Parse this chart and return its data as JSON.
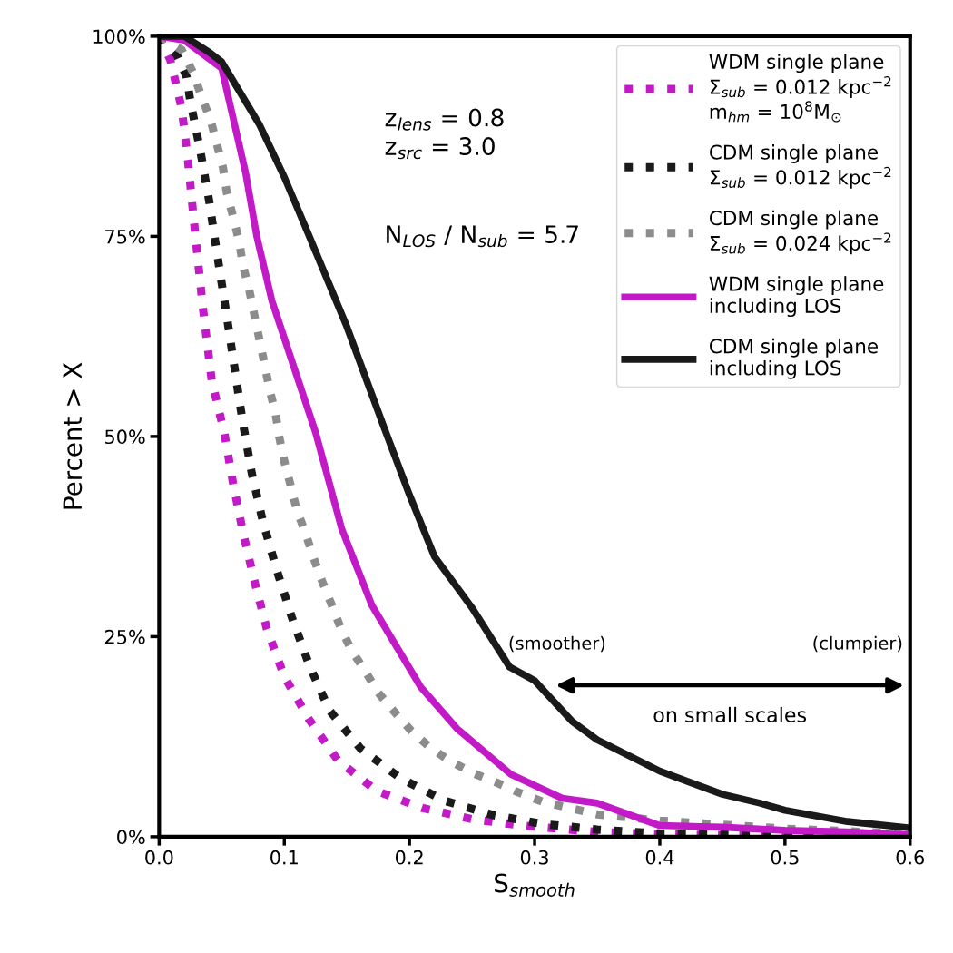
{
  "chart_data": {
    "type": "line",
    "xlabel": "S$_{smooth}$",
    "ylabel": "Percent > X",
    "xlim": [
      0,
      0.6
    ],
    "xticks": [
      {
        "value": 0,
        "label": "0.0"
      },
      {
        "value": 0.1,
        "label": "0.1"
      },
      {
        "value": 0.2,
        "label": "0.2"
      },
      {
        "value": 0.3,
        "label": "0.3"
      },
      {
        "value": 0.4,
        "label": "0.4"
      },
      {
        "value": 0.5,
        "label": "0.5"
      },
      {
        "value": 0.6,
        "label": "0.6"
      }
    ],
    "ylim": [
      0,
      100
    ],
    "yticks": [
      {
        "value": 0,
        "label": "0%"
      },
      {
        "value": 25,
        "label": "25%"
      },
      {
        "value": 50,
        "label": "50%"
      },
      {
        "value": 75,
        "label": "75%"
      },
      {
        "value": 100,
        "label": "100%"
      }
    ],
    "grid": false,
    "legend": "top right",
    "annotations": [
      "z$_{lens}$ = 0.8\nz$_{src}$ = 3.0",
      "N$_{LOS}$ / N$_{sub}$ = 5.7",
      "(smoother)",
      "(clumpier)",
      "on small scales"
    ],
    "series": [
      {
        "name": "WDM single plane\nΣ$_{sub}$ = 0.012 kpc$^{−2}$\nm$_{hm}$ = 10$^{8}$M$_{⊙}$",
        "color": "#c21ac6",
        "line_style": "dotted",
        "x": [
          0,
          0.009,
          0.018,
          0.023,
          0.029,
          0.035,
          0.042,
          0.052,
          0.059,
          0.067,
          0.076,
          0.086,
          0.1,
          0.12,
          0.143,
          0.174,
          0.21,
          0.25,
          0.29,
          0.35,
          0.4,
          0.5,
          0.6
        ],
        "values": [
          100,
          97,
          91,
          84.5,
          75,
          66,
          57,
          50.5,
          44.2,
          38,
          32,
          26,
          20,
          14.6,
          9.5,
          5.7,
          3.6,
          2.2,
          1.4,
          0.6,
          0.3,
          0.1,
          0
        ]
      },
      {
        "name": "CDM single plane\nΣ$_{sub}$ = 0.012 kpc$^{−2}$",
        "color": "#1a1a1a",
        "line_style": "dotted",
        "x": [
          0,
          0.014,
          0.022,
          0.025,
          0.033,
          0.04,
          0.046,
          0.052,
          0.058,
          0.064,
          0.067,
          0.074,
          0.083,
          0.094,
          0.106,
          0.12,
          0.136,
          0.161,
          0.193,
          0.228,
          0.267,
          0.306,
          0.35,
          0.4,
          0.5,
          0.6
        ],
        "values": [
          100,
          97.7,
          94.9,
          91.8,
          85.6,
          79.4,
          73.1,
          67.1,
          60.9,
          54.6,
          51.6,
          45.4,
          39.3,
          33.3,
          27.4,
          21.4,
          15.8,
          11,
          7.3,
          4.5,
          2.7,
          1.6,
          0.9,
          0.4,
          0.2,
          0
        ]
      },
      {
        "name": "CDM single plane\nΣ$_{sub}$ = 0.024 kpc$^{−2}$",
        "color": "#8c8c8c",
        "line_style": "dotted",
        "x": [
          0,
          0.018,
          0.027,
          0.034,
          0.041,
          0.046,
          0.051,
          0.054,
          0.059,
          0.064,
          0.067,
          0.072,
          0.076,
          0.08,
          0.084,
          0.088,
          0.093,
          0.096,
          0.1,
          0.105,
          0.11,
          0.117,
          0.123,
          0.13,
          0.138,
          0.145,
          0.154,
          0.165,
          0.175,
          0.188,
          0.201,
          0.216,
          0.232,
          0.25,
          0.269,
          0.286,
          0.306,
          0.35,
          0.4,
          0.45,
          0.5,
          0.55,
          0.6
        ],
        "values": [
          100,
          98.3,
          95.5,
          92.4,
          89.6,
          86.6,
          83.6,
          80.5,
          77.5,
          74.3,
          71.3,
          68.3,
          65.2,
          62.2,
          59.2,
          56,
          52.9,
          49.9,
          46.9,
          43.9,
          40.8,
          37.9,
          35,
          32,
          28.9,
          26.1,
          23.2,
          20.6,
          18,
          15.6,
          13.3,
          11.2,
          9.5,
          8,
          6.8,
          5.6,
          4.4,
          2.8,
          2,
          1.5,
          1,
          0.7,
          0.3
        ]
      },
      {
        "name": "WDM single plane\nincluding LOS",
        "color": "#c21ac6",
        "line_style": "solid",
        "x": [
          0,
          0.02,
          0.05,
          0.069,
          0.078,
          0.09,
          0.125,
          0.146,
          0.17,
          0.209,
          0.238,
          0.281,
          0.322,
          0.35,
          0.4,
          0.45,
          0.5,
          0.55,
          0.6
        ],
        "values": [
          100,
          99.5,
          96,
          83,
          75,
          67,
          50.5,
          38.4,
          28.9,
          18.7,
          13.5,
          7.8,
          4.8,
          4.2,
          1.4,
          1.2,
          0.8,
          0.6,
          0.2
        ]
      },
      {
        "name": "CDM single plane\nincluding LOS",
        "color": "#1a1a1a",
        "line_style": "solid",
        "x": [
          0,
          0.02,
          0.04,
          0.05,
          0.08,
          0.1,
          0.12,
          0.15,
          0.18,
          0.2,
          0.22,
          0.25,
          0.28,
          0.3,
          0.33,
          0.35,
          0.4,
          0.45,
          0.48,
          0.5,
          0.55,
          0.6
        ],
        "values": [
          100,
          100,
          98,
          96.8,
          89,
          82.4,
          75,
          63.7,
          51,
          42.7,
          35,
          28.6,
          21.2,
          19.5,
          14.4,
          12.1,
          8.2,
          5.3,
          4.2,
          3.3,
          1.9,
          1.1
        ]
      }
    ]
  }
}
